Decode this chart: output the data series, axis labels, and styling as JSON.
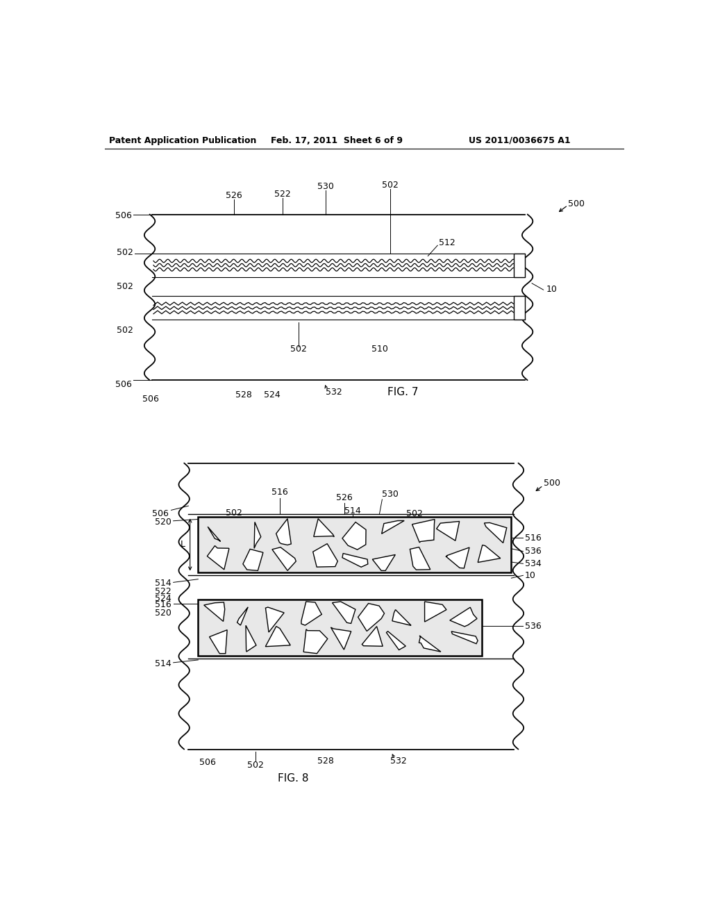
{
  "bg_color": "#ffffff",
  "header_text": "Patent Application Publication",
  "header_date": "Feb. 17, 2011  Sheet 6 of 9",
  "header_patent": "US 2011/0036675 A1",
  "fig7_label": "FIG. 7",
  "fig8_label": "FIG. 8",
  "line_color": "#000000",
  "label_fontsize": 9,
  "header_fontsize": 8.5
}
